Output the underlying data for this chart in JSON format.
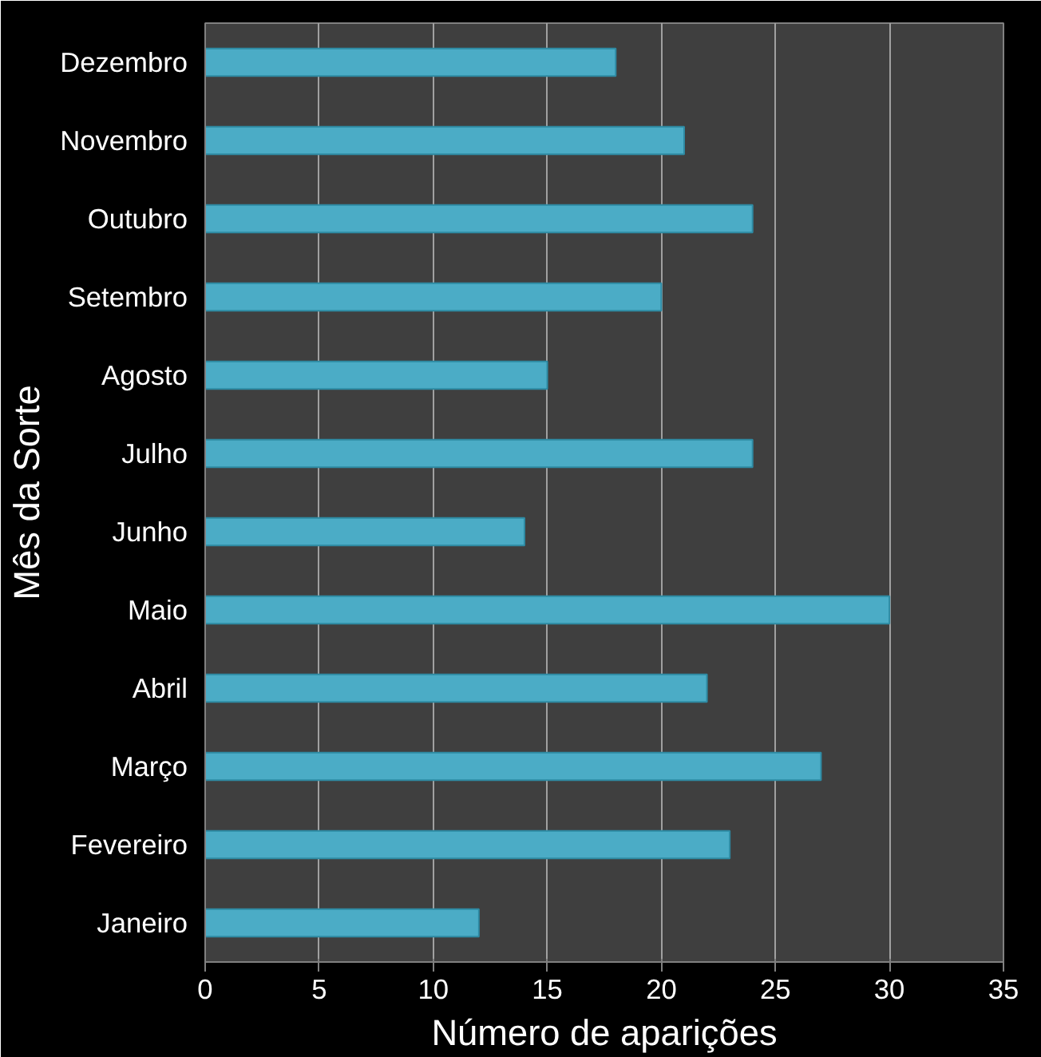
{
  "chart_data": {
    "type": "bar",
    "orientation": "horizontal",
    "xlabel": "Número de aparições",
    "ylabel": "Mês da Sorte",
    "categories": [
      "Dezembro",
      "Novembro",
      "Outubro",
      "Setembro",
      "Agosto",
      "Julho",
      "Junho",
      "Maio",
      "Abril",
      "Março",
      "Fevereiro",
      "Janeiro"
    ],
    "values": [
      18,
      21,
      24,
      20,
      15,
      24,
      14,
      30,
      22,
      27,
      23,
      12
    ],
    "color": "#4bacc6",
    "xlim": [
      0,
      35
    ],
    "xticks": [
      0,
      5,
      10,
      15,
      20,
      25,
      30,
      35
    ],
    "grid": "x"
  }
}
